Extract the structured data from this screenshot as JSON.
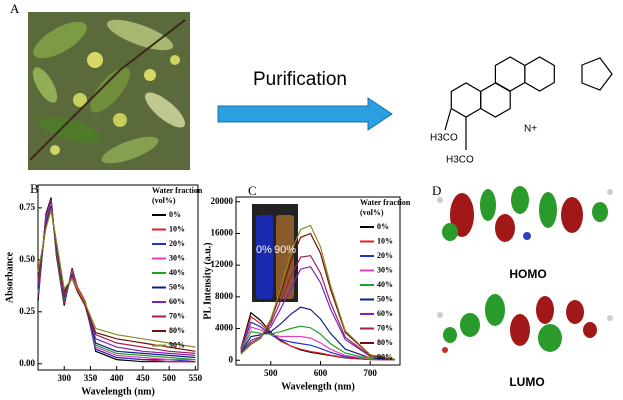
{
  "panel_labels": {
    "a": "A",
    "b": "B",
    "c": "C",
    "d": "D"
  },
  "arrow_label": "Purification",
  "structure": {
    "methoxy_top": "H3CO",
    "methoxy_bottom": "H3CO",
    "nitrogen": "N+"
  },
  "orbitals": {
    "homo": "HOMO",
    "lumo": "LUMO"
  },
  "chart_data": [
    {
      "type": "line",
      "xlabel": "Wavelength (nm)",
      "ylabel": "Absorbance",
      "legend": "upper right",
      "legend_title": [
        "Water fraction",
        "(vol%)"
      ],
      "x": [
        250,
        265,
        275,
        285,
        300,
        315,
        325,
        340,
        360,
        400,
        450,
        500,
        550
      ],
      "xlim": [
        250,
        555
      ],
      "xticks": [
        300,
        350,
        400,
        450,
        500,
        550
      ],
      "ylim": [
        -0.03,
        0.86
      ],
      "yticks": [
        {
          "value": 0,
          "label": "0.00"
        },
        {
          "value": 0.25,
          "label": "0.25"
        },
        {
          "value": 0.5,
          "label": "0.50"
        },
        {
          "value": 0.75,
          "label": "0.75"
        }
      ],
      "series": [
        {
          "name": "0%",
          "color": "#000000",
          "values": [
            0.3,
            0.72,
            0.8,
            0.52,
            0.28,
            0.46,
            0.37,
            0.3,
            0.06,
            0.02,
            0.01,
            0.01,
            0.01
          ]
        },
        {
          "name": "10%",
          "color": "#e0202a",
          "values": [
            0.32,
            0.71,
            0.79,
            0.53,
            0.29,
            0.45,
            0.37,
            0.3,
            0.07,
            0.03,
            0.02,
            0.01,
            0.01
          ]
        },
        {
          "name": "20%",
          "color": "#2030d0",
          "values": [
            0.33,
            0.7,
            0.78,
            0.54,
            0.3,
            0.44,
            0.36,
            0.29,
            0.07,
            0.03,
            0.02,
            0.02,
            0.01
          ]
        },
        {
          "name": "30%",
          "color": "#e040c0",
          "values": [
            0.34,
            0.69,
            0.77,
            0.55,
            0.31,
            0.44,
            0.36,
            0.29,
            0.08,
            0.04,
            0.03,
            0.02,
            0.02
          ]
        },
        {
          "name": "40%",
          "color": "#20a020",
          "values": [
            0.35,
            0.68,
            0.76,
            0.55,
            0.31,
            0.43,
            0.35,
            0.28,
            0.09,
            0.05,
            0.04,
            0.03,
            0.02
          ]
        },
        {
          "name": "50%",
          "color": "#102080",
          "values": [
            0.36,
            0.68,
            0.76,
            0.56,
            0.32,
            0.43,
            0.35,
            0.28,
            0.1,
            0.06,
            0.05,
            0.04,
            0.03
          ]
        },
        {
          "name": "60%",
          "color": "#8020c0",
          "values": [
            0.38,
            0.67,
            0.75,
            0.57,
            0.33,
            0.42,
            0.35,
            0.28,
            0.12,
            0.08,
            0.06,
            0.05,
            0.04
          ]
        },
        {
          "name": "70%",
          "color": "#a02050",
          "values": [
            0.4,
            0.66,
            0.75,
            0.58,
            0.34,
            0.42,
            0.35,
            0.28,
            0.14,
            0.1,
            0.08,
            0.06,
            0.05
          ]
        },
        {
          "name": "80%",
          "color": "#701010",
          "values": [
            0.42,
            0.66,
            0.74,
            0.58,
            0.35,
            0.41,
            0.35,
            0.28,
            0.15,
            0.12,
            0.1,
            0.08,
            0.06
          ]
        },
        {
          "name": "90%",
          "color": "#8a8a20",
          "values": [
            0.44,
            0.65,
            0.74,
            0.59,
            0.36,
            0.41,
            0.36,
            0.29,
            0.17,
            0.14,
            0.12,
            0.1,
            0.08
          ]
        }
      ]
    },
    {
      "type": "line",
      "xlabel": "Wavelength (nm)",
      "ylabel": "PL Intensity (a.u.)",
      "legend": "upper right",
      "legend_title": [
        "Water fraction",
        "(vol%)"
      ],
      "inset_labels": [
        "0%",
        "90%"
      ],
      "x": [
        440,
        460,
        480,
        500,
        520,
        540,
        560,
        580,
        600,
        620,
        650,
        700,
        750
      ],
      "xlim": [
        430,
        760
      ],
      "xticks": [
        500,
        600,
        700
      ],
      "ylim": [
        -600,
        20600
      ],
      "yticks": [
        0,
        4000,
        8000,
        12000,
        16000,
        20000
      ],
      "series": [
        {
          "name": "0%",
          "color": "#000000",
          "values": [
            1500,
            6000,
            5000,
            3500,
            2500,
            1800,
            1300,
            1000,
            800,
            600,
            300,
            100,
            50
          ]
        },
        {
          "name": "10%",
          "color": "#e0202a",
          "values": [
            1400,
            5500,
            4600,
            3300,
            2400,
            1800,
            1400,
            1100,
            900,
            650,
            320,
            100,
            50
          ]
        },
        {
          "name": "20%",
          "color": "#2030d0",
          "values": [
            1300,
            4800,
            4200,
            3200,
            2600,
            2300,
            2100,
            1900,
            1500,
            1000,
            450,
            120,
            50
          ]
        },
        {
          "name": "30%",
          "color": "#e040c0",
          "values": [
            1200,
            4200,
            3800,
            3200,
            3000,
            3000,
            3000,
            2800,
            2200,
            1400,
            600,
            150,
            60
          ]
        },
        {
          "name": "40%",
          "color": "#20a020",
          "values": [
            1100,
            3600,
            3400,
            3300,
            3600,
            4000,
            4300,
            4100,
            3300,
            2100,
            900,
            200,
            60
          ]
        },
        {
          "name": "50%",
          "color": "#102080",
          "values": [
            1000,
            3000,
            3200,
            3600,
            4600,
            5800,
            6700,
            6400,
            5200,
            3400,
            1400,
            300,
            80
          ]
        },
        {
          "name": "60%",
          "color": "#8020c0",
          "values": [
            900,
            2500,
            3000,
            4200,
            6500,
            9000,
            11500,
            11800,
            9800,
            6500,
            2600,
            500,
            100
          ]
        },
        {
          "name": "70%",
          "color": "#a02050",
          "values": [
            800,
            2200,
            2900,
            4600,
            7500,
            10500,
            13000,
            13200,
            11000,
            7300,
            2900,
            550,
            100
          ]
        },
        {
          "name": "80%",
          "color": "#701010",
          "values": [
            800,
            2000,
            2800,
            5000,
            8500,
            12500,
            15500,
            16000,
            13500,
            9000,
            3500,
            650,
            120
          ]
        },
        {
          "name": "90%",
          "color": "#8a8a20",
          "values": [
            800,
            2000,
            2900,
            5200,
            9000,
            13500,
            16500,
            17000,
            14300,
            9500,
            3700,
            700,
            120
          ]
        }
      ]
    }
  ]
}
